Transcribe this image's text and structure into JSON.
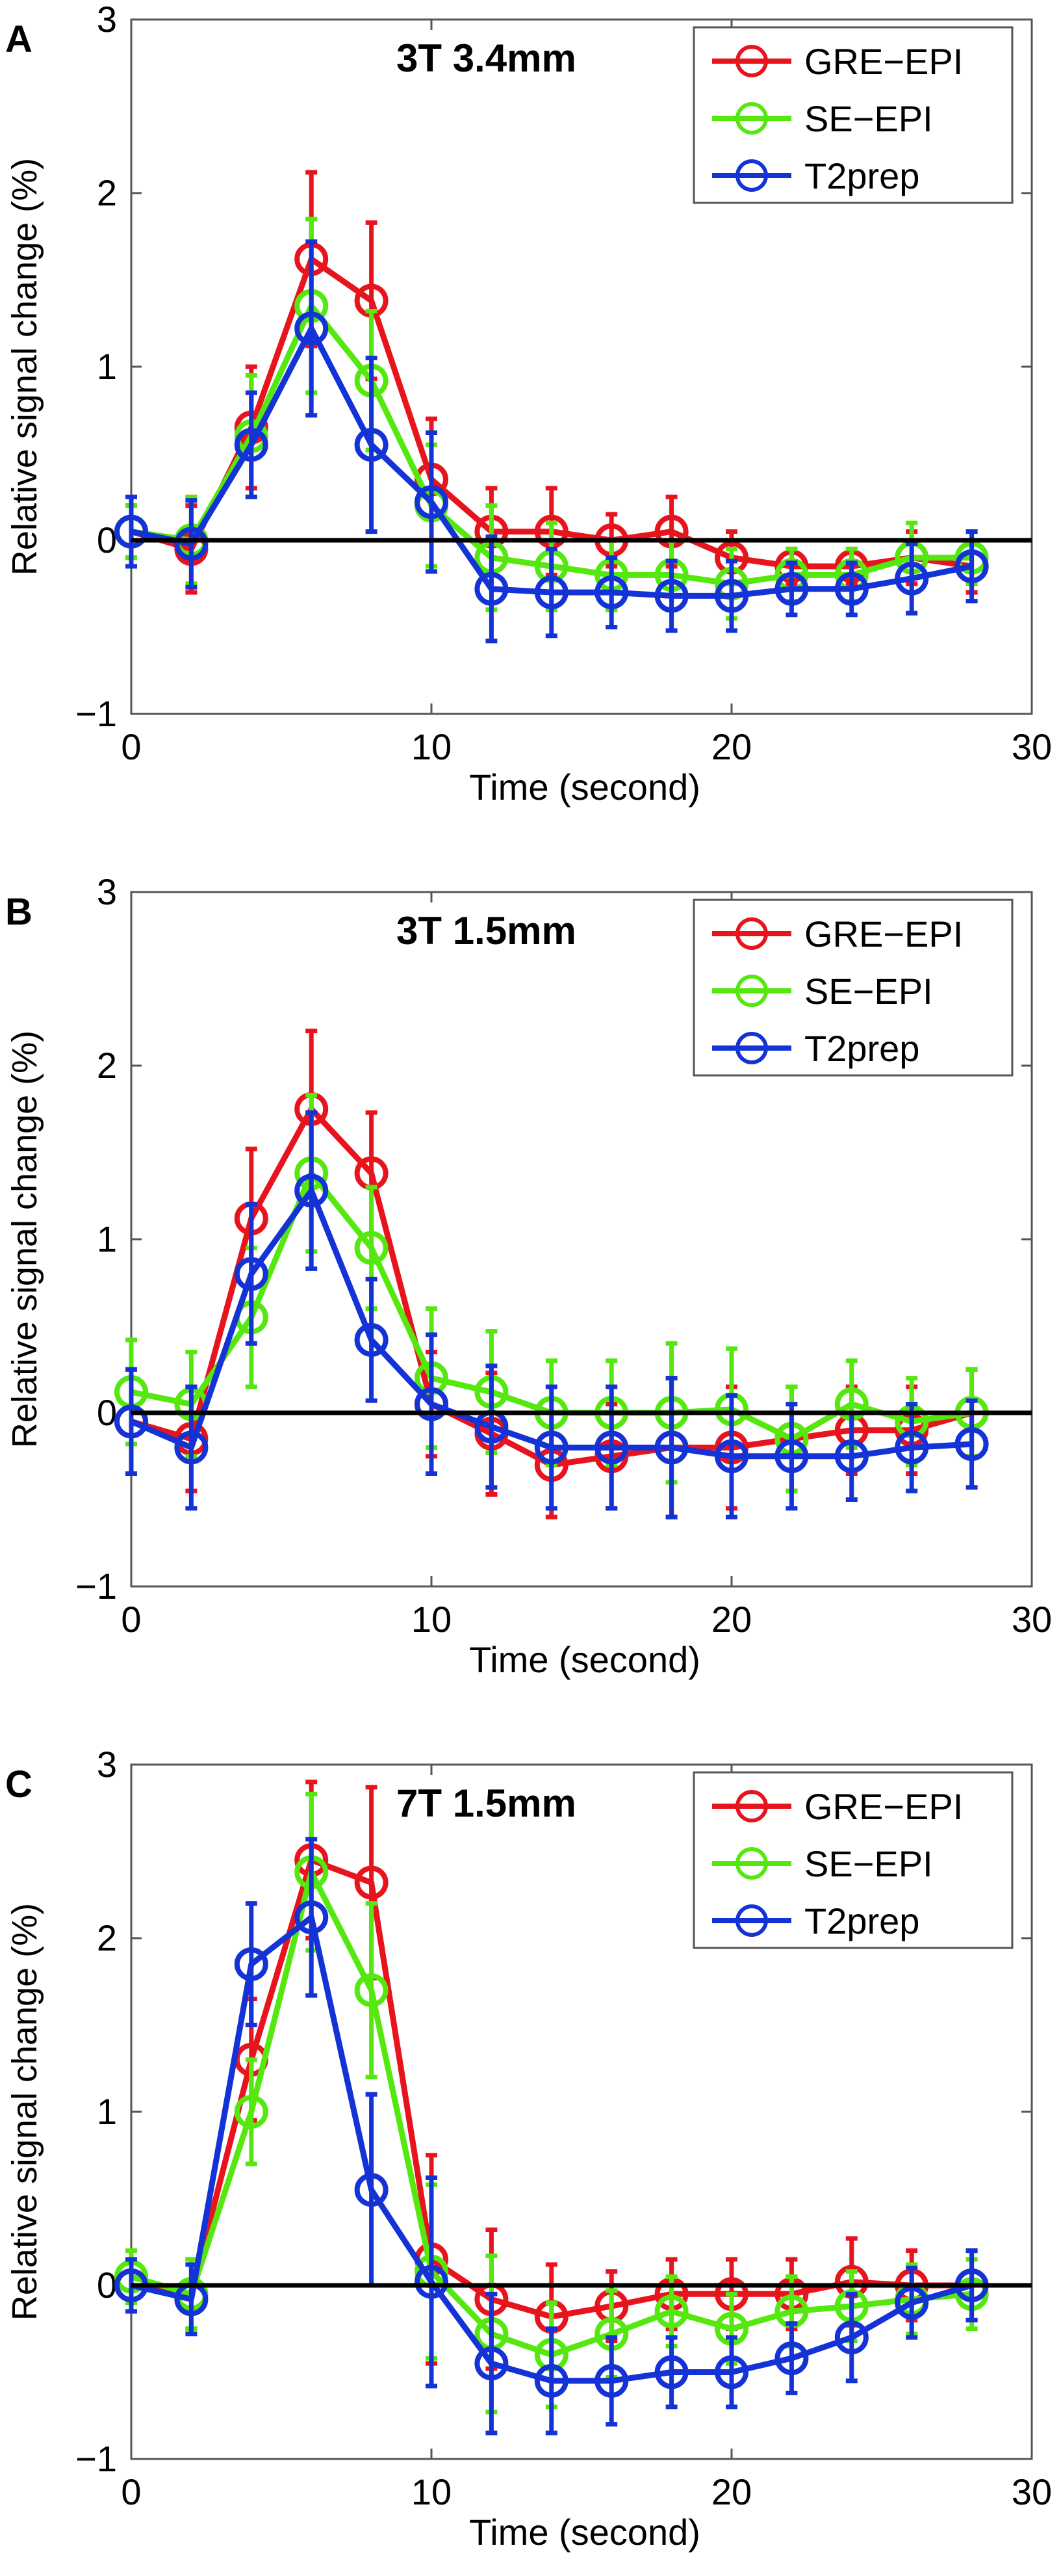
{
  "chart_data": [
    {
      "type": "line",
      "panel_label": "A",
      "title": "3T 3.4mm",
      "xlabel": "Time (second)",
      "ylabel": "Relative signal change (%)",
      "xlim": [
        0,
        30
      ],
      "ylim": [
        -1,
        3
      ],
      "xticks": [
        "0",
        "10",
        "20",
        "30"
      ],
      "yticks": [
        "−1",
        "0",
        "1",
        "2",
        "3"
      ],
      "baseline": 0,
      "x": [
        0,
        2,
        4,
        6,
        8,
        10,
        12,
        14,
        16,
        18,
        20,
        22,
        24,
        26,
        28
      ],
      "series": [
        {
          "name": "GRE−EPI",
          "color": "#e8141d",
          "values": [
            0.05,
            -0.05,
            0.65,
            1.62,
            1.38,
            0.35,
            0.05,
            0.05,
            0.0,
            0.05,
            -0.1,
            -0.15,
            -0.15,
            -0.1,
            -0.15
          ],
          "errors": [
            0.15,
            0.25,
            0.35,
            0.5,
            0.45,
            0.35,
            0.25,
            0.25,
            0.15,
            0.2,
            0.15,
            0.1,
            0.1,
            0.15,
            0.15
          ]
        },
        {
          "name": "SE−EPI",
          "color": "#55e80f",
          "values": [
            0.05,
            0.0,
            0.6,
            1.35,
            0.92,
            0.2,
            -0.1,
            -0.15,
            -0.2,
            -0.2,
            -0.25,
            -0.2,
            -0.2,
            -0.1,
            -0.1
          ],
          "errors": [
            0.15,
            0.25,
            0.35,
            0.5,
            0.4,
            0.35,
            0.3,
            0.25,
            0.2,
            0.2,
            0.2,
            0.15,
            0.15,
            0.2,
            0.15
          ]
        },
        {
          "name": "T2prep",
          "color": "#1433d6",
          "values": [
            0.05,
            -0.02,
            0.55,
            1.22,
            0.55,
            0.22,
            -0.28,
            -0.3,
            -0.3,
            -0.32,
            -0.32,
            -0.28,
            -0.28,
            -0.22,
            -0.15
          ],
          "errors": [
            0.2,
            0.25,
            0.3,
            0.5,
            0.5,
            0.4,
            0.3,
            0.25,
            0.2,
            0.2,
            0.2,
            0.15,
            0.15,
            0.2,
            0.2
          ]
        }
      ]
    },
    {
      "type": "line",
      "panel_label": "B",
      "title": "3T 1.5mm",
      "xlabel": "Time (second)",
      "ylabel": "Relative signal change (%)",
      "xlim": [
        0,
        30
      ],
      "ylim": [
        -1,
        3
      ],
      "xticks": [
        "0",
        "10",
        "20",
        "30"
      ],
      "yticks": [
        "−1",
        "0",
        "1",
        "2",
        "3"
      ],
      "baseline": 0,
      "x": [
        0,
        2,
        4,
        6,
        8,
        10,
        12,
        14,
        16,
        18,
        20,
        22,
        24,
        26,
        28
      ],
      "series": [
        {
          "name": "GRE−EPI",
          "color": "#e8141d",
          "values": [
            -0.05,
            -0.15,
            1.12,
            1.75,
            1.38,
            0.05,
            -0.12,
            -0.3,
            -0.25,
            -0.2,
            -0.2,
            -0.15,
            -0.1,
            -0.1,
            0.0
          ],
          "errors": [
            0.3,
            0.3,
            0.4,
            0.45,
            0.35,
            0.3,
            0.35,
            0.3,
            0.3,
            0.4,
            0.35,
            0.3,
            0.25,
            0.25,
            0.25
          ]
        },
        {
          "name": "SE−EPI",
          "color": "#55e80f",
          "values": [
            0.12,
            0.05,
            0.55,
            1.38,
            0.95,
            0.2,
            0.12,
            0.0,
            0.0,
            0.0,
            0.02,
            -0.15,
            0.05,
            -0.05,
            0.0
          ],
          "errors": [
            0.3,
            0.3,
            0.4,
            0.45,
            0.35,
            0.4,
            0.35,
            0.3,
            0.3,
            0.4,
            0.35,
            0.3,
            0.25,
            0.25,
            0.25
          ]
        },
        {
          "name": "T2prep",
          "color": "#1433d6",
          "values": [
            -0.05,
            -0.2,
            0.8,
            1.28,
            0.42,
            0.05,
            -0.08,
            -0.2,
            -0.2,
            -0.2,
            -0.25,
            -0.25,
            -0.25,
            -0.2,
            -0.18
          ],
          "errors": [
            0.3,
            0.35,
            0.4,
            0.45,
            0.35,
            0.4,
            0.35,
            0.35,
            0.35,
            0.4,
            0.35,
            0.3,
            0.25,
            0.25,
            0.25
          ]
        }
      ]
    },
    {
      "type": "line",
      "panel_label": "C",
      "title": "7T 1.5mm",
      "xlabel": "Time (second)",
      "ylabel": "Relative signal change (%)",
      "xlim": [
        0,
        30
      ],
      "ylim": [
        -1,
        3
      ],
      "xticks": [
        "0",
        "10",
        "20",
        "30"
      ],
      "yticks": [
        "−1",
        "0",
        "1",
        "2",
        "3"
      ],
      "baseline": 0,
      "x": [
        0,
        2,
        4,
        6,
        8,
        10,
        12,
        14,
        16,
        18,
        20,
        22,
        24,
        26,
        28
      ],
      "series": [
        {
          "name": "GRE−EPI",
          "color": "#e8141d",
          "values": [
            0.0,
            -0.05,
            1.3,
            2.45,
            2.32,
            0.15,
            -0.08,
            -0.18,
            -0.12,
            -0.05,
            -0.05,
            -0.05,
            0.02,
            0.0,
            0.0
          ],
          "errors": [
            0.15,
            0.2,
            0.35,
            0.45,
            0.55,
            0.6,
            0.4,
            0.3,
            0.2,
            0.2,
            0.2,
            0.2,
            0.25,
            0.2,
            0.2
          ]
        },
        {
          "name": "SE−EPI",
          "color": "#55e80f",
          "values": [
            0.05,
            -0.05,
            1.0,
            2.38,
            1.7,
            0.08,
            -0.28,
            -0.4,
            -0.28,
            -0.15,
            -0.25,
            -0.15,
            -0.12,
            -0.08,
            -0.05
          ],
          "errors": [
            0.15,
            0.2,
            0.3,
            0.45,
            0.5,
            0.5,
            0.45,
            0.3,
            0.25,
            0.2,
            0.2,
            0.2,
            0.2,
            0.2,
            0.2
          ]
        },
        {
          "name": "T2prep",
          "color": "#1433d6",
          "values": [
            0.0,
            -0.08,
            1.85,
            2.12,
            0.55,
            0.02,
            -0.45,
            -0.55,
            -0.55,
            -0.5,
            -0.5,
            -0.42,
            -0.3,
            -0.1,
            0.0
          ],
          "errors": [
            0.15,
            0.2,
            0.35,
            0.45,
            0.55,
            0.6,
            0.4,
            0.3,
            0.25,
            0.2,
            0.2,
            0.2,
            0.25,
            0.2,
            0.2
          ]
        }
      ]
    }
  ]
}
